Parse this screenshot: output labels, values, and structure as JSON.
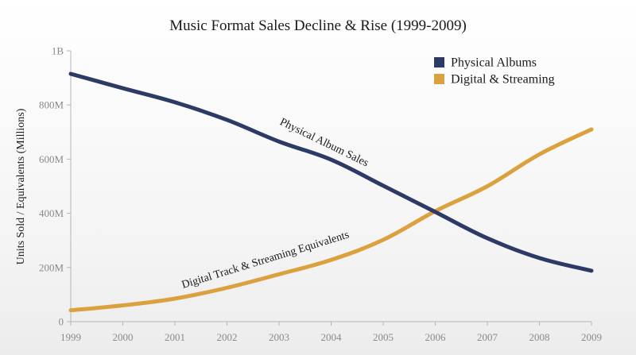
{
  "chart_data": {
    "type": "line",
    "title": "Music Format Sales Decline & Rise (1999-2009)",
    "xlabel": "",
    "ylabel": "Units Sold / Equivalents (Millions)",
    "x": [
      1999,
      2000,
      2001,
      2002,
      2003,
      2004,
      2005,
      2006,
      2007,
      2008,
      2009
    ],
    "ylim": [
      0,
      1000
    ],
    "yticks": [
      0,
      200,
      400,
      600,
      800,
      1000
    ],
    "ytick_labels": [
      "0",
      "200M",
      "400M",
      "600M",
      "800M",
      "1B"
    ],
    "xtick_labels": [
      "1999",
      "2000",
      "2001",
      "2002",
      "2003",
      "2004",
      "2005",
      "2006",
      "2007",
      "2008",
      "2009"
    ],
    "grid": false,
    "legend_position": "top-right",
    "series": [
      {
        "name": "Physical Albums",
        "color": "#2e3a66",
        "values": [
          915,
          862,
          810,
          745,
          665,
          598,
          502,
          405,
          308,
          235,
          188
        ]
      },
      {
        "name": "Digital & Streaming",
        "color": "#dba13e",
        "values": [
          42,
          60,
          85,
          125,
          175,
          228,
          302,
          408,
          500,
          618,
          710
        ]
      }
    ],
    "annotations": [
      {
        "text": "Physical Album Sales",
        "series": 0,
        "near_x": 2004
      },
      {
        "text": "Digital Track & Streaming Equivalents",
        "series": 1,
        "near_x": 2003
      }
    ]
  }
}
